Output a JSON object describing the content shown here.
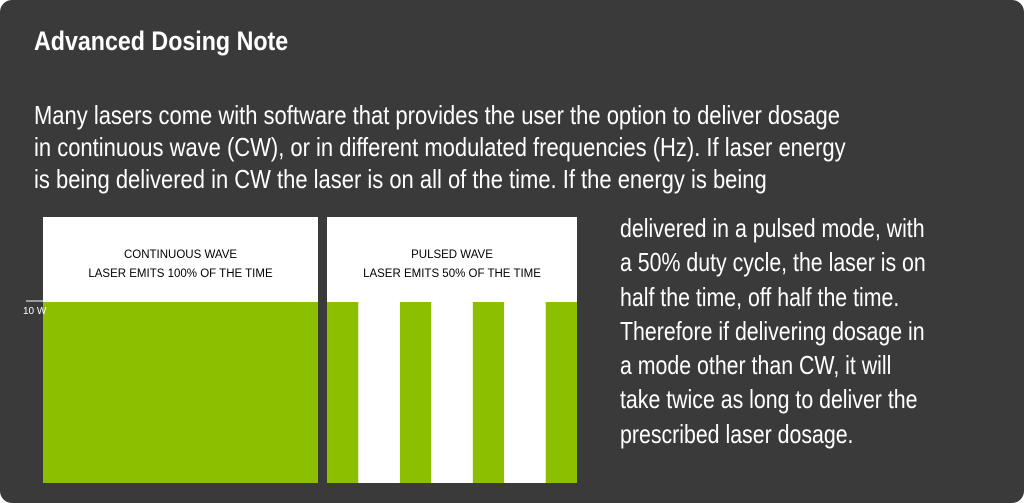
{
  "note": {
    "title": "Advanced Dosing Note",
    "intro_lines": [
      "Many lasers come with software that provides the user the option to deliver dosage",
      "in continuous wave (CW), or in different modulated frequencies (Hz).  If laser energy",
      "is being delivered in CW the laser is on all of the time.  If the energy is being"
    ],
    "side_lines": [
      "delivered in a pulsed mode, with",
      "a 50% duty cycle, the laser is on",
      "half the time, off half the time.",
      "Therefore if delivering dosage in",
      "a mode other than CW, it will",
      "take twice as long to deliver the",
      "prescribed laser dosage."
    ]
  },
  "diagram": {
    "power_label": "10 W",
    "colors": {
      "laser_on": "#8cbf00",
      "laser_off": "#ffffff",
      "background": "#3a3a3a"
    },
    "continuous": {
      "line1": "CONTINUOUS WAVE",
      "line2": "LASER EMITS 100% OF THE TIME",
      "duty_cycle_percent": 100
    },
    "pulsed": {
      "line1": "PULSED WAVE",
      "line2": "LASER EMITS 50% OF THE TIME",
      "duty_cycle_percent": 50,
      "on_pulses": 4
    }
  }
}
